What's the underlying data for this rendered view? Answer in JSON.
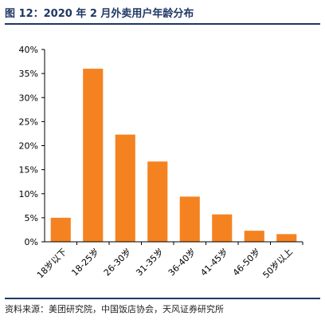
{
  "title": "图 12：2020 年 2 月外卖用户年龄分布",
  "source": "资料来源：美团研究院，中国饭店协会，天风证券研究所",
  "colors": {
    "bar": "#f58220",
    "title": "#1f3864",
    "axis": "#000000"
  },
  "chart_data": {
    "type": "bar",
    "categories": [
      "18岁以下",
      "18-25岁",
      "26-30岁",
      "31-35岁",
      "36-40岁",
      "41-45岁",
      "46-50岁",
      "50岁以上"
    ],
    "values": [
      5.0,
      36.0,
      22.3,
      16.7,
      9.4,
      5.7,
      2.3,
      1.6
    ],
    "title": "",
    "xlabel": "",
    "ylabel": "",
    "ylim": [
      0,
      40
    ],
    "yticks": [
      0,
      5,
      10,
      15,
      20,
      25,
      30,
      35,
      40
    ],
    "ytick_labels": [
      "0%",
      "5%",
      "10%",
      "15%",
      "20%",
      "25%",
      "30%",
      "35%",
      "40%"
    ],
    "grid": false,
    "legend": "none"
  }
}
